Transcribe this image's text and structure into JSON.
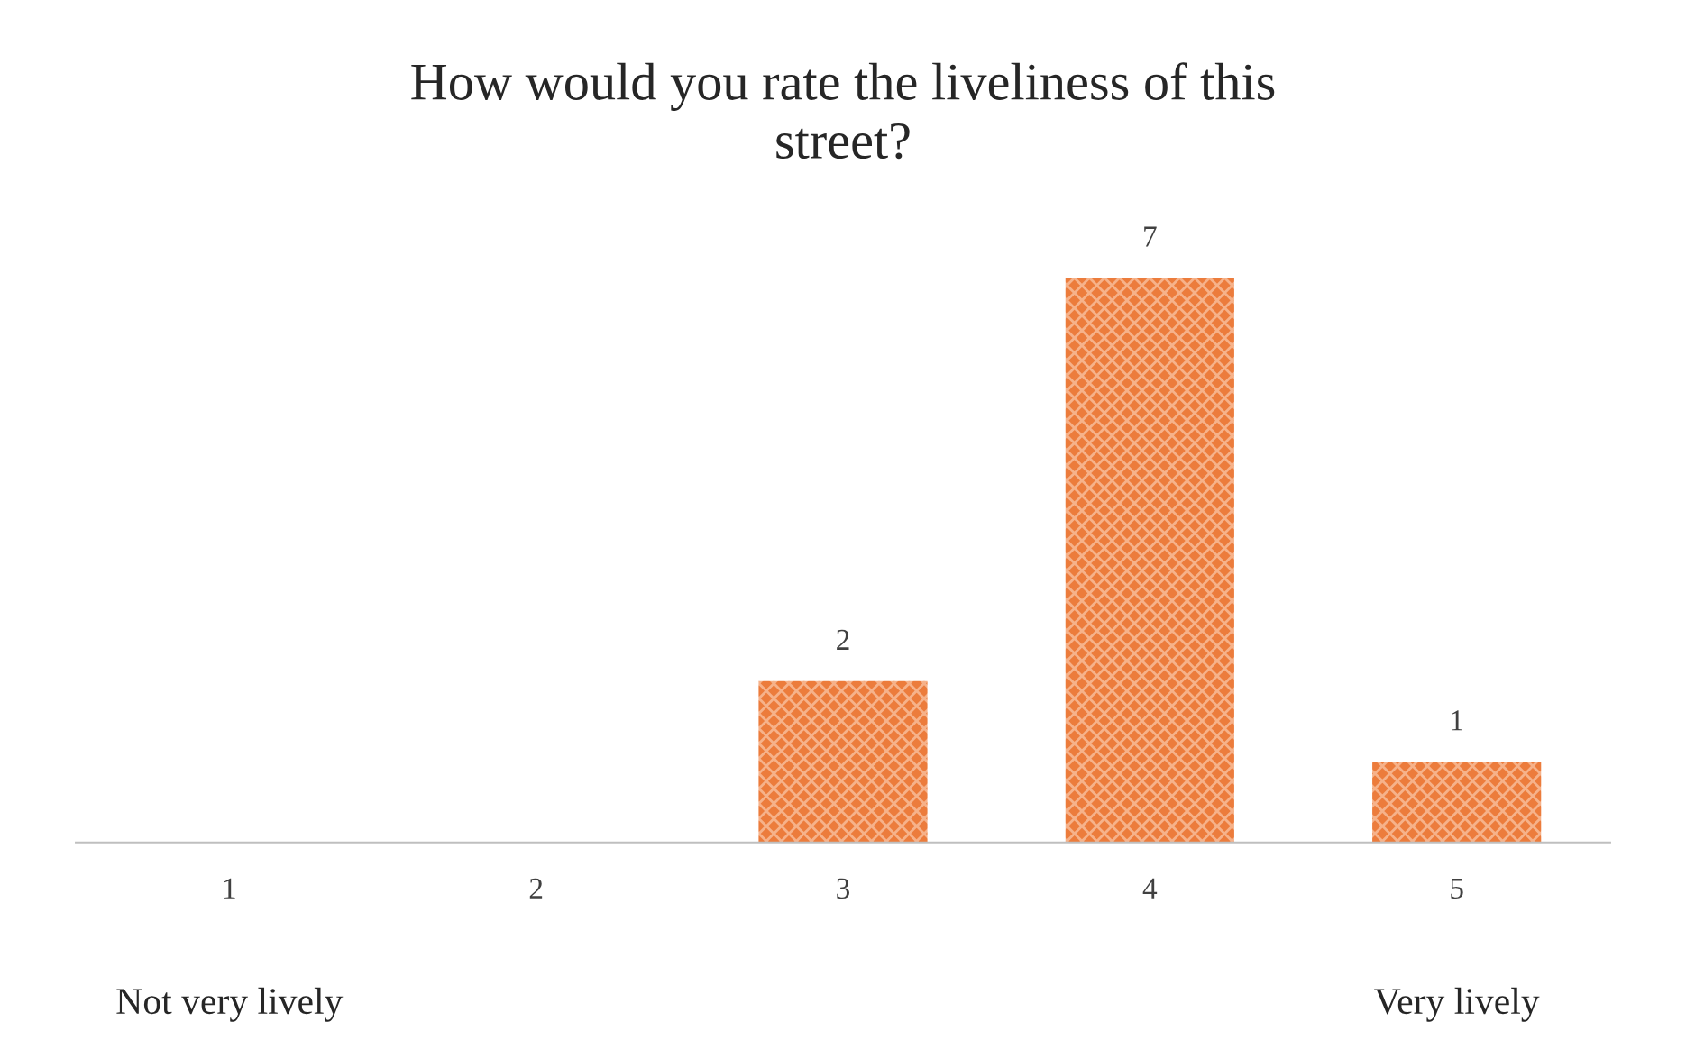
{
  "chart_data": {
    "type": "bar",
    "title": "How would you rate the liveliness of this\nstreet?",
    "categories": [
      "1",
      "2",
      "3",
      "4",
      "5"
    ],
    "values": [
      0,
      0,
      2,
      7,
      1
    ],
    "value_labels": [
      null,
      null,
      "2",
      "7",
      "1"
    ],
    "color": "#ec7c3c",
    "annotations": [
      "Not very lively",
      "Very lively"
    ],
    "grid": false,
    "legend": false
  }
}
